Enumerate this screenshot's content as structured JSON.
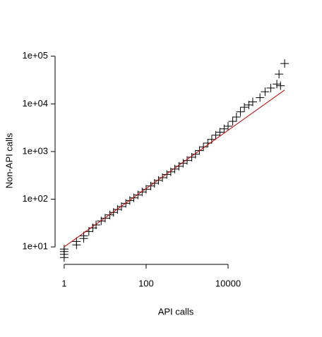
{
  "chart_data": {
    "type": "scatter",
    "xlabel": "API calls",
    "ylabel": "Non-API calls",
    "log_x": true,
    "log_y": true,
    "xlim": [
      0.6,
      385000
    ],
    "ylim": [
      4.3,
      130000
    ],
    "xticks": [
      1,
      100,
      10000
    ],
    "yticks": [
      {
        "value": 10,
        "label": "1e+01"
      },
      {
        "value": 100,
        "label": "1e+02"
      },
      {
        "value": 1000,
        "label": "1e+03"
      },
      {
        "value": 10000,
        "label": "1e+04"
      },
      {
        "value": 100000,
        "label": "1e+05"
      }
    ],
    "points": {
      "color": "#000000",
      "x": [
        1,
        1,
        1,
        1,
        2,
        2,
        3,
        3,
        4,
        5,
        6,
        8,
        10,
        13,
        16,
        20,
        25,
        32,
        40,
        50,
        63,
        80,
        100,
        130,
        160,
        200,
        250,
        320,
        400,
        500,
        630,
        800,
        1000,
        1300,
        1600,
        2000,
        2500,
        3200,
        4000,
        5000,
        6300,
        8000,
        10000,
        13000,
        16000,
        20000,
        25000,
        32000,
        40000,
        60000,
        80000,
        110000,
        155000,
        175000,
        190000,
        240000
      ],
      "y": [
        6,
        7,
        8,
        9,
        11,
        13,
        15,
        17,
        21,
        25,
        29,
        35,
        40,
        47,
        53,
        61,
        70,
        82,
        94,
        107,
        123,
        142,
        162,
        190,
        216,
        248,
        283,
        330,
        375,
        430,
        490,
        570,
        650,
        760,
        880,
        1050,
        1250,
        1500,
        1800,
        2200,
        2550,
        3000,
        3400,
        4300,
        5300,
        6800,
        8500,
        9500,
        11000,
        13500,
        18000,
        21500,
        26000,
        42000,
        24000,
        70000
      ]
    },
    "fit_line": {
      "color": "#cc0000",
      "x": [
        1,
        240000
      ],
      "y": [
        10,
        19500
      ]
    }
  }
}
